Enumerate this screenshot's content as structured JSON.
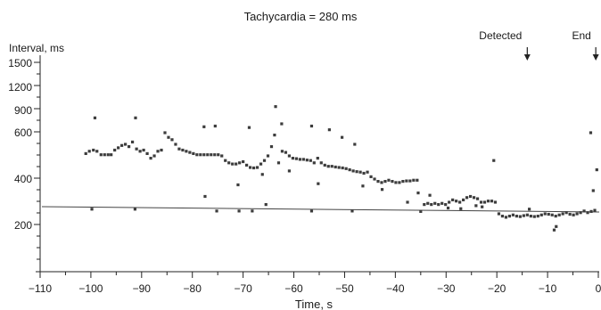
{
  "chart_data": {
    "type": "scatter",
    "title": "Tachycardia = 280 ms",
    "xlabel": "Time, s",
    "ylabel": "Interval, ms",
    "xlim": [
      -110,
      0
    ],
    "y_tick_values": [
      200,
      400,
      600,
      900,
      1200,
      1500
    ],
    "y_tick_labels": [
      "200",
      "400",
      "600",
      "900",
      "1200",
      "1500"
    ],
    "x_tick_values": [
      -110,
      -100,
      -90,
      -80,
      -70,
      -60,
      -50,
      -40,
      -30,
      -20,
      -10,
      0
    ],
    "x_tick_labels": [
      "−110",
      "−100",
      "−90",
      "−80",
      "−70",
      "−60",
      "−50",
      "−40",
      "−30",
      "−20",
      "−10",
      "0"
    ],
    "threshold_line": {
      "value": 280,
      "label": "Tachycardia = 280 ms"
    },
    "annotations": [
      {
        "label": "Detected",
        "x": -14
      },
      {
        "label": "End",
        "x": -0.5
      }
    ],
    "grid": false,
    "point_color": "#3c3c3c",
    "points": [
      [
        -101,
        510
      ],
      [
        -100.3,
        520
      ],
      [
        -99.5,
        525
      ],
      [
        -98.8,
        520
      ],
      [
        -98,
        505
      ],
      [
        -97.3,
        505
      ],
      [
        -96.6,
        505
      ],
      [
        -96,
        505
      ],
      [
        -95.3,
        525
      ],
      [
        -94.6,
        535
      ],
      [
        -93.9,
        545
      ],
      [
        -93.2,
        550
      ],
      [
        -92.5,
        540
      ],
      [
        -91.8,
        560
      ],
      [
        -91,
        530
      ],
      [
        -90.3,
        520
      ],
      [
        -89.6,
        525
      ],
      [
        -88.9,
        510
      ],
      [
        -88.2,
        490
      ],
      [
        -87.5,
        500
      ],
      [
        -86.8,
        520
      ],
      [
        -86.1,
        525
      ],
      [
        -85.4,
        600
      ],
      [
        -84.7,
        580
      ],
      [
        -84,
        570
      ],
      [
        -83.3,
        550
      ],
      [
        -82.6,
        530
      ],
      [
        -81.9,
        525
      ],
      [
        -81.2,
        520
      ],
      [
        -80.5,
        515
      ],
      [
        -79.8,
        510
      ],
      [
        -79.1,
        505
      ],
      [
        -78.4,
        505
      ],
      [
        -77.7,
        505
      ],
      [
        -77,
        505
      ],
      [
        -76.3,
        505
      ],
      [
        -75.6,
        505
      ],
      [
        -74.9,
        505
      ],
      [
        -74.2,
        500
      ],
      [
        -73.5,
        480
      ],
      [
        -72.8,
        470
      ],
      [
        -72.1,
        465
      ],
      [
        -71.4,
        465
      ],
      [
        -70.7,
        470
      ],
      [
        -70,
        475
      ],
      [
        -69.3,
        460
      ],
      [
        -68.6,
        450
      ],
      [
        -67.9,
        448
      ],
      [
        -67.2,
        450
      ],
      [
        -66.5,
        465
      ],
      [
        -65.8,
        480
      ],
      [
        -65.1,
        500
      ],
      [
        -64.4,
        540
      ],
      [
        -63.8,
        590
      ],
      [
        -63,
        470
      ],
      [
        -62.3,
        520
      ],
      [
        -61.6,
        515
      ],
      [
        -60.9,
        500
      ],
      [
        -60.2,
        490
      ],
      [
        -59.5,
        488
      ],
      [
        -58.8,
        485
      ],
      [
        -58.1,
        485
      ],
      [
        -57.4,
        482
      ],
      [
        -56.7,
        480
      ],
      [
        -56,
        470
      ],
      [
        -55.3,
        490
      ],
      [
        -54.6,
        470
      ],
      [
        -53.9,
        460
      ],
      [
        -53.2,
        455
      ],
      [
        -52.5,
        455
      ],
      [
        -51.8,
        452
      ],
      [
        -51.1,
        450
      ],
      [
        -50.4,
        448
      ],
      [
        -49.7,
        445
      ],
      [
        -49,
        440
      ],
      [
        -48.3,
        435
      ],
      [
        -47.6,
        432
      ],
      [
        -46.9,
        430
      ],
      [
        -46.2,
        425
      ],
      [
        -45.5,
        430
      ],
      [
        -44.8,
        410
      ],
      [
        -44.1,
        400
      ],
      [
        -43.4,
        390
      ],
      [
        -42.7,
        385
      ],
      [
        -42,
        390
      ],
      [
        -41.3,
        395
      ],
      [
        -40.6,
        390
      ],
      [
        -39.9,
        385
      ],
      [
        -39.2,
        385
      ],
      [
        -38.5,
        390
      ],
      [
        -37.8,
        392
      ],
      [
        -37.1,
        392
      ],
      [
        -36.4,
        395
      ],
      [
        -35.7,
        395
      ],
      [
        -35,
        260
      ],
      [
        -34.3,
        290
      ],
      [
        -33.6,
        295
      ],
      [
        -32.9,
        290
      ],
      [
        -32.2,
        295
      ],
      [
        -31.5,
        290
      ],
      [
        -30.8,
        295
      ],
      [
        -30.1,
        290
      ],
      [
        -29.4,
        300
      ],
      [
        -28.7,
        310
      ],
      [
        -28,
        305
      ],
      [
        -27.3,
        300
      ],
      [
        -26.6,
        310
      ],
      [
        -25.9,
        320
      ],
      [
        -25.2,
        325
      ],
      [
        -24.5,
        320
      ],
      [
        -23.8,
        315
      ],
      [
        -23.1,
        300
      ],
      [
        -22.4,
        300
      ],
      [
        -21.7,
        305
      ],
      [
        -21,
        305
      ],
      [
        -20.3,
        300
      ],
      [
        -19.6,
        250
      ],
      [
        -18.9,
        240
      ],
      [
        -18.2,
        235
      ],
      [
        -17.5,
        240
      ],
      [
        -16.8,
        245
      ],
      [
        -16.1,
        240
      ],
      [
        -15.4,
        238
      ],
      [
        -14.7,
        242
      ],
      [
        -14,
        245
      ],
      [
        -13.3,
        240
      ],
      [
        -12.6,
        238
      ],
      [
        -11.9,
        240
      ],
      [
        -11.2,
        245
      ],
      [
        -10.5,
        250
      ],
      [
        -9.8,
        248
      ],
      [
        -9.1,
        245
      ],
      [
        -8.4,
        240
      ],
      [
        -7.7,
        245
      ],
      [
        -7,
        250
      ],
      [
        -6.3,
        255
      ],
      [
        -5.6,
        248
      ],
      [
        -4.9,
        245
      ],
      [
        -4.2,
        250
      ],
      [
        -3.5,
        255
      ],
      [
        -2.8,
        262
      ],
      [
        -2.1,
        255
      ],
      [
        -1.4,
        260
      ],
      [
        -0.7,
        265
      ],
      [
        -99.2,
        800
      ],
      [
        -91.2,
        800
      ],
      [
        -77.7,
        680
      ],
      [
        -75.5,
        690
      ],
      [
        -68.8,
        670
      ],
      [
        -63.6,
        950
      ],
      [
        -62.4,
        720
      ],
      [
        -56.5,
        690
      ],
      [
        -53,
        640
      ],
      [
        -50.5,
        580
      ],
      [
        -48,
        550
      ],
      [
        -20.6,
        480
      ],
      [
        -1.5,
        600
      ],
      [
        -0.3,
        440
      ],
      [
        -1,
        350
      ],
      [
        -99.8,
        270
      ],
      [
        -91.3,
        270
      ],
      [
        -77.5,
        325
      ],
      [
        -75.2,
        262
      ],
      [
        -70.8,
        262
      ],
      [
        -68.2,
        262
      ],
      [
        -65.5,
        290
      ],
      [
        -56.5,
        262
      ],
      [
        -48.5,
        262
      ],
      [
        -37.6,
        300
      ],
      [
        -13.6,
        270
      ],
      [
        -8.7,
        180
      ],
      [
        -8.3,
        195
      ],
      [
        -71,
        375
      ],
      [
        -66.2,
        420
      ],
      [
        -60.9,
        435
      ],
      [
        -55.2,
        380
      ],
      [
        -46.4,
        370
      ],
      [
        -42.6,
        355
      ],
      [
        -35.5,
        340
      ],
      [
        -33.2,
        330
      ],
      [
        -29.6,
        275
      ],
      [
        -27.1,
        272
      ],
      [
        -24.1,
        285
      ],
      [
        -22.9,
        280
      ]
    ]
  }
}
